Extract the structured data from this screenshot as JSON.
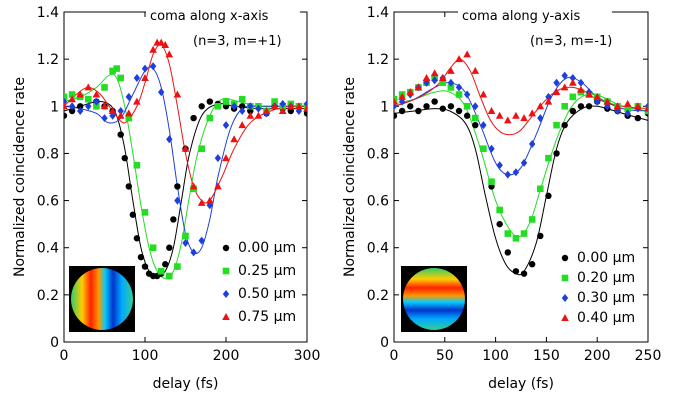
{
  "chart_data": [
    {
      "type": "scatter",
      "title": "coma along x-axis",
      "subtitle": "(n=3, m=+1)",
      "xlabel": "delay (fs)",
      "ylabel": "Normalized coincidence rate",
      "xlim": [
        0,
        300
      ],
      "ylim": [
        0,
        1.4
      ],
      "xticks": [
        0,
        100,
        200,
        300
      ],
      "yticks": [
        0,
        0.2,
        0.4,
        0.6,
        0.8,
        1,
        1.2,
        1.4
      ],
      "xtick_labels": [
        "0",
        "100",
        "200",
        "300"
      ],
      "ytick_labels": [
        "0",
        "0.2",
        "0.4",
        "0.6",
        "0.8",
        "1",
        "1.2",
        "1.4"
      ],
      "legend_position": "bottom-right",
      "inset": "pupil phase map (coma along x)",
      "series": [
        {
          "name": "0.00 μm",
          "color": "#000000",
          "marker": "circle",
          "x": [
            0,
            10,
            20,
            30,
            40,
            50,
            60,
            70,
            75,
            80,
            85,
            90,
            95,
            100,
            105,
            110,
            115,
            120,
            125,
            130,
            135,
            140,
            150,
            160,
            170,
            180,
            190,
            200,
            210,
            220,
            230,
            240,
            250,
            260,
            270,
            280,
            290,
            300
          ],
          "y": [
            0.96,
            0.98,
            1.0,
            1.03,
            1.02,
            1.0,
            0.98,
            0.88,
            0.78,
            0.66,
            0.54,
            0.44,
            0.36,
            0.32,
            0.29,
            0.28,
            0.28,
            0.29,
            0.33,
            0.4,
            0.52,
            0.66,
            0.82,
            0.95,
            1.0,
            1.02,
            1.01,
            1.0,
            0.99,
            1.0,
            0.98,
            1.0,
            0.97,
            1.0,
            0.99,
            0.98,
            1.0,
            0.97
          ],
          "fit_x": [
            0,
            20,
            40,
            55,
            65,
            75,
            85,
            95,
            105,
            115,
            125,
            135,
            145,
            155,
            170,
            190,
            210,
            240,
            270,
            300
          ],
          "fit_y": [
            0.98,
            1.0,
            1.02,
            1.01,
            0.96,
            0.82,
            0.6,
            0.4,
            0.3,
            0.28,
            0.3,
            0.4,
            0.6,
            0.8,
            0.96,
            1.01,
            1.0,
            0.99,
            0.99,
            0.99
          ]
        },
        {
          "name": "0.25 μm",
          "color": "#22dd22",
          "marker": "square",
          "x": [
            0,
            10,
            20,
            30,
            40,
            50,
            60,
            65,
            70,
            80,
            90,
            100,
            110,
            120,
            130,
            140,
            150,
            160,
            170,
            180,
            190,
            200,
            210,
            220,
            230,
            240,
            250,
            260,
            270,
            280,
            290,
            300
          ],
          "y": [
            1.04,
            1.05,
            1.04,
            1.03,
            1.0,
            1.08,
            1.15,
            1.16,
            1.12,
            0.95,
            0.75,
            0.55,
            0.4,
            0.3,
            0.28,
            0.32,
            0.45,
            0.65,
            0.82,
            0.95,
            1.0,
            1.02,
            1.01,
            1.03,
            1.0,
            1.0,
            0.98,
            1.02,
            1.0,
            1.01,
            1.0,
            1.0
          ],
          "fit_x": [
            0,
            20,
            40,
            55,
            65,
            75,
            85,
            95,
            105,
            115,
            125,
            135,
            145,
            155,
            165,
            180,
            195,
            215,
            240,
            270,
            300
          ],
          "fit_y": [
            1.02,
            1.04,
            1.08,
            1.13,
            1.12,
            1.0,
            0.8,
            0.58,
            0.4,
            0.3,
            0.27,
            0.3,
            0.42,
            0.62,
            0.8,
            0.96,
            1.03,
            1.02,
            1.0,
            1.0,
            1.0
          ]
        },
        {
          "name": "0.50 μm",
          "color": "#1f3fdd",
          "marker": "diamond",
          "x": [
            0,
            10,
            20,
            30,
            40,
            50,
            60,
            70,
            80,
            90,
            100,
            110,
            120,
            130,
            140,
            150,
            160,
            170,
            180,
            190,
            200,
            210,
            220,
            230,
            240,
            250,
            260,
            270,
            280,
            290,
            300
          ],
          "y": [
            1.02,
            1.0,
            0.98,
            1.0,
            1.02,
            0.95,
            0.96,
            0.98,
            1.04,
            1.12,
            1.16,
            1.17,
            1.06,
            0.86,
            0.6,
            0.42,
            0.38,
            0.43,
            0.58,
            0.78,
            0.92,
            1.0,
            0.98,
            1.0,
            0.99,
            0.97,
            1.0,
            1.01,
            1.0,
            0.98,
            1.01
          ],
          "fit_x": [
            0,
            20,
            40,
            55,
            70,
            85,
            100,
            110,
            120,
            130,
            140,
            150,
            160,
            170,
            180,
            190,
            205,
            220,
            240,
            270,
            300
          ],
          "fit_y": [
            1.0,
            0.99,
            0.97,
            0.93,
            0.95,
            1.05,
            1.15,
            1.16,
            1.08,
            0.9,
            0.66,
            0.46,
            0.38,
            0.4,
            0.52,
            0.7,
            0.9,
            0.99,
            1.0,
            1.0,
            1.0
          ]
        },
        {
          "name": "0.75 μm",
          "color": "#ee1111",
          "marker": "triangle",
          "x": [
            0,
            10,
            20,
            30,
            40,
            50,
            60,
            70,
            80,
            90,
            100,
            110,
            115,
            120,
            125,
            130,
            140,
            150,
            160,
            170,
            180,
            190,
            200,
            210,
            220,
            230,
            240,
            250,
            260,
            270,
            280,
            290,
            300
          ],
          "y": [
            1.0,
            1.03,
            1.05,
            1.08,
            1.05,
            1.0,
            0.98,
            0.96,
            0.97,
            1.02,
            1.12,
            1.24,
            1.27,
            1.27,
            1.26,
            1.22,
            1.05,
            0.82,
            0.66,
            0.59,
            0.6,
            0.66,
            0.78,
            0.86,
            0.92,
            0.96,
            0.96,
            0.98,
            1.0,
            0.98,
            1.0,
            1.0,
            0.99
          ],
          "fit_x": [
            0,
            15,
            30,
            45,
            60,
            75,
            90,
            100,
            110,
            120,
            130,
            140,
            150,
            160,
            170,
            180,
            195,
            210,
            230,
            255,
            280,
            300
          ],
          "fit_y": [
            1.0,
            1.05,
            1.08,
            1.05,
            0.98,
            0.93,
            1.0,
            1.1,
            1.22,
            1.26,
            1.18,
            1.0,
            0.8,
            0.66,
            0.6,
            0.6,
            0.7,
            0.82,
            0.93,
            0.98,
            1.0,
            1.0
          ]
        }
      ]
    },
    {
      "type": "scatter",
      "title": "coma along y-axis",
      "subtitle": "(n=3, m=-1)",
      "xlabel": "delay (fs)",
      "ylabel": "Normalized coincidence rate",
      "xlim": [
        0,
        250
      ],
      "ylim": [
        0,
        1.4
      ],
      "xticks": [
        0,
        50,
        100,
        150,
        200,
        250
      ],
      "yticks": [
        0,
        0.2,
        0.4,
        0.6,
        0.8,
        1,
        1.2,
        1.4
      ],
      "xtick_labels": [
        "0",
        "50",
        "100",
        "150",
        "200",
        "250"
      ],
      "ytick_labels": [
        "0",
        "0.2",
        "0.4",
        "0.6",
        "0.8",
        "1",
        "1.2",
        "1.4"
      ],
      "legend_position": "bottom-right",
      "inset": "pupil phase map (coma along y)",
      "series": [
        {
          "name": "0.00 μm",
          "color": "#000000",
          "marker": "circle",
          "x": [
            0,
            8,
            16,
            24,
            32,
            40,
            48,
            56,
            64,
            72,
            80,
            88,
            96,
            104,
            112,
            120,
            128,
            136,
            144,
            152,
            160,
            168,
            176,
            184,
            192,
            200,
            210,
            220,
            230,
            240,
            250
          ],
          "y": [
            0.96,
            0.98,
            1.0,
            0.98,
            1.0,
            1.02,
            0.99,
            1.0,
            0.98,
            0.96,
            0.92,
            0.82,
            0.66,
            0.5,
            0.38,
            0.3,
            0.29,
            0.33,
            0.45,
            0.62,
            0.8,
            0.92,
            0.98,
            1.0,
            1.0,
            1.02,
            0.99,
            0.98,
            0.96,
            0.95,
            0.97
          ],
          "fit_x": [
            0,
            20,
            40,
            55,
            70,
            80,
            90,
            100,
            110,
            120,
            128,
            140,
            150,
            160,
            170,
            185,
            200,
            225,
            250
          ],
          "fit_y": [
            0.97,
            0.98,
            0.99,
            0.98,
            0.93,
            0.82,
            0.62,
            0.44,
            0.33,
            0.29,
            0.3,
            0.42,
            0.62,
            0.82,
            0.93,
            0.99,
            1.0,
            0.97,
            0.94
          ]
        },
        {
          "name": "0.20 μm",
          "color": "#22dd22",
          "marker": "square",
          "x": [
            0,
            8,
            16,
            24,
            32,
            40,
            48,
            56,
            64,
            72,
            80,
            88,
            96,
            104,
            112,
            120,
            128,
            136,
            144,
            152,
            160,
            168,
            176,
            184,
            192,
            200,
            210,
            220,
            230,
            240,
            250
          ],
          "y": [
            1.03,
            1.05,
            1.06,
            1.08,
            1.1,
            1.12,
            1.1,
            1.08,
            1.05,
            1.0,
            0.95,
            0.82,
            0.68,
            0.56,
            0.46,
            0.44,
            0.46,
            0.52,
            0.65,
            0.78,
            0.92,
            1.0,
            1.04,
            1.06,
            1.05,
            1.04,
            1.02,
            1.0,
            0.99,
            1.0,
            0.98
          ],
          "fit_x": [
            0,
            20,
            40,
            55,
            70,
            85,
            100,
            115,
            125,
            135,
            145,
            160,
            175,
            190,
            205,
            225,
            250
          ],
          "fit_y": [
            1.01,
            1.03,
            1.06,
            1.06,
            1.0,
            0.82,
            0.6,
            0.47,
            0.45,
            0.52,
            0.66,
            0.86,
            1.0,
            1.05,
            1.04,
            1.0,
            0.98
          ]
        },
        {
          "name": "0.30 μm",
          "color": "#1f3fdd",
          "marker": "diamond",
          "x": [
            0,
            8,
            16,
            24,
            32,
            40,
            48,
            56,
            64,
            72,
            80,
            88,
            96,
            104,
            112,
            120,
            128,
            136,
            144,
            152,
            160,
            168,
            176,
            184,
            192,
            200,
            210,
            220,
            230,
            240,
            250
          ],
          "y": [
            1.0,
            1.02,
            1.05,
            1.08,
            1.1,
            1.11,
            1.12,
            1.1,
            1.08,
            1.05,
            1.0,
            0.92,
            0.82,
            0.75,
            0.71,
            0.72,
            0.76,
            0.84,
            0.95,
            1.04,
            1.1,
            1.13,
            1.12,
            1.1,
            1.06,
            1.02,
            1.0,
            0.98,
            0.97,
            0.99,
            1.0
          ],
          "fit_x": [
            0,
            20,
            40,
            55,
            70,
            85,
            100,
            112,
            125,
            140,
            155,
            170,
            185,
            200,
            225,
            250
          ],
          "fit_y": [
            1.0,
            1.03,
            1.08,
            1.1,
            1.06,
            0.92,
            0.76,
            0.71,
            0.74,
            0.88,
            1.04,
            1.12,
            1.1,
            1.04,
            0.99,
            0.98
          ]
        },
        {
          "name": "0.40 μm",
          "color": "#ee1111",
          "marker": "triangle",
          "x": [
            0,
            8,
            16,
            24,
            32,
            40,
            48,
            56,
            64,
            72,
            80,
            88,
            96,
            104,
            112,
            120,
            128,
            136,
            144,
            152,
            160,
            168,
            176,
            184,
            192,
            200,
            210,
            220,
            230,
            240,
            250
          ],
          "y": [
            1.02,
            1.04,
            1.06,
            1.08,
            1.12,
            1.14,
            1.12,
            1.15,
            1.2,
            1.22,
            1.15,
            1.05,
            0.98,
            0.96,
            0.94,
            0.96,
            0.95,
            0.97,
            1.0,
            1.02,
            1.06,
            1.08,
            1.1,
            1.07,
            1.05,
            1.04,
            1.02,
            1.0,
            1.01,
            1.0,
            0.99
          ],
          "fit_x": [
            0,
            15,
            30,
            45,
            55,
            65,
            75,
            85,
            95,
            105,
            115,
            125,
            140,
            155,
            170,
            185,
            200,
            225,
            250
          ],
          "fit_y": [
            1.0,
            1.02,
            1.05,
            1.1,
            1.16,
            1.2,
            1.15,
            1.04,
            0.94,
            0.89,
            0.88,
            0.9,
            0.98,
            1.05,
            1.08,
            1.07,
            1.03,
            1.0,
            0.99
          ]
        }
      ]
    }
  ]
}
